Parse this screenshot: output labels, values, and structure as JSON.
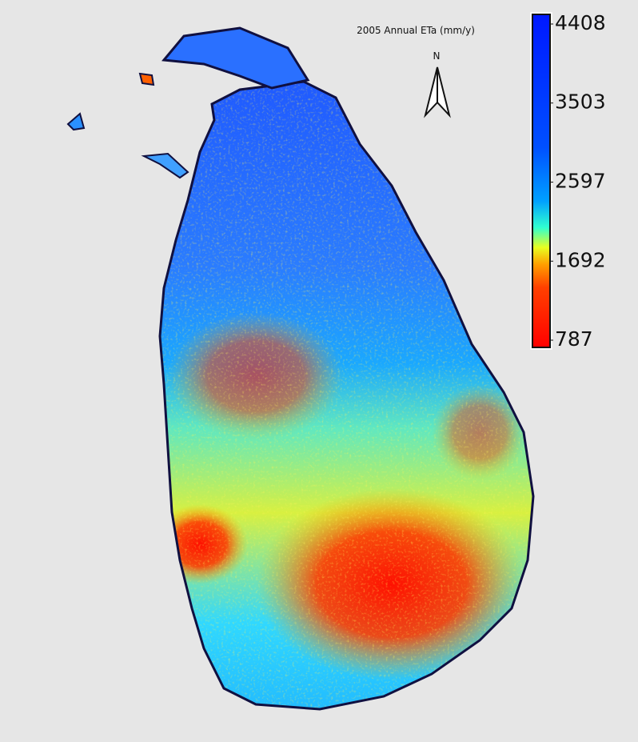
{
  "map": {
    "title": "2005 Annual ETa (mm/y)",
    "north_label": "N",
    "colorbar": {
      "range": [
        787,
        4408
      ],
      "ticks": [
        4408,
        3503,
        2597,
        1692,
        787
      ]
    }
  }
}
